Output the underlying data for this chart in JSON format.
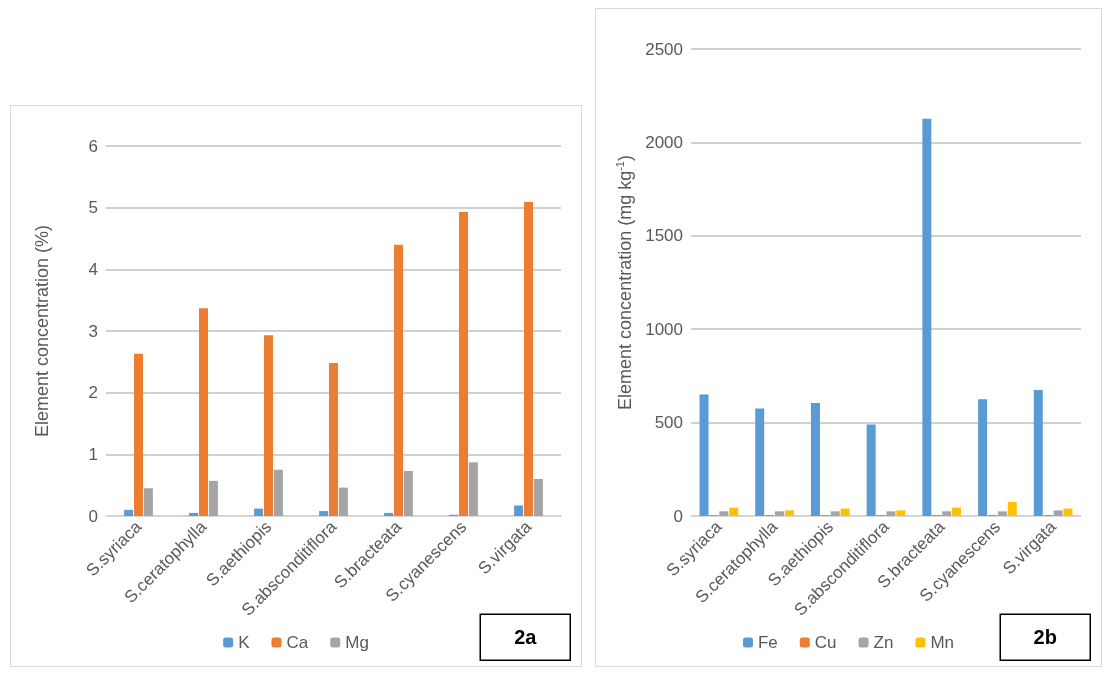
{
  "chart_data": [
    {
      "type": "bar",
      "categories": [
        "S.syriaca",
        "S.ceratophylla",
        "S.aethiopis",
        "S.absconditiflora",
        "S.bracteata",
        "S.cyanescens",
        "S.virgata"
      ],
      "ylabel": "Element concentration (%)",
      "ylim": [
        0,
        6
      ],
      "yticks": [
        0,
        1,
        2,
        3,
        4,
        5,
        6
      ],
      "grid": "y",
      "legend": "bottom",
      "annotations": [
        "2a"
      ],
      "series": [
        {
          "name": "K",
          "color": "#5b9bd5",
          "values": [
            0.1,
            0.05,
            0.12,
            0.08,
            0.05,
            0.02,
            0.17
          ]
        },
        {
          "name": "Ca",
          "color": "#ed7d31",
          "values": [
            2.63,
            3.37,
            2.93,
            2.48,
            4.4,
            4.93,
            5.09
          ]
        },
        {
          "name": "Mg",
          "color": "#a5a5a5",
          "values": [
            0.45,
            0.57,
            0.75,
            0.46,
            0.73,
            0.87,
            0.6
          ]
        }
      ]
    },
    {
      "type": "bar",
      "categories": [
        "S.syriaca",
        "S.ceratophylla",
        "S.aethiopis",
        "S.absconditiflora",
        "S.bracteata",
        "S.cyanescens",
        "S.virgata"
      ],
      "ylabel": "Element concentration (mg kg$^{-1}$)",
      "ylim": [
        0,
        2500
      ],
      "yticks": [
        0,
        500,
        1000,
        1500,
        2000,
        2500
      ],
      "grid": "y",
      "legend": "bottom",
      "annotations": [
        "2b"
      ],
      "series": [
        {
          "name": "Fe",
          "color": "#5b9bd5",
          "values": [
            650,
            575,
            605,
            490,
            2127,
            625,
            675
          ]
        },
        {
          "name": "Cu",
          "color": "#ed7d31",
          "values": [
            5,
            5,
            5,
            5,
            5,
            5,
            5
          ]
        },
        {
          "name": "Zn",
          "color": "#a5a5a5",
          "values": [
            25,
            25,
            25,
            25,
            25,
            25,
            30
          ]
        },
        {
          "name": "Mn",
          "color": "#ffc000",
          "values": [
            45,
            30,
            40,
            30,
            45,
            75,
            40
          ]
        }
      ]
    }
  ]
}
